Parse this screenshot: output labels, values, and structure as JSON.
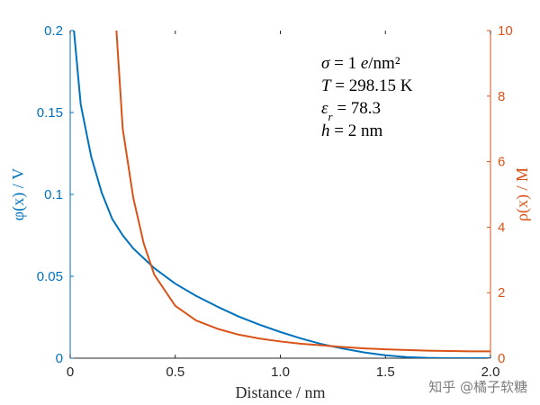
{
  "chart_data": {
    "type": "line",
    "x": [
      0.0,
      0.05,
      0.1,
      0.15,
      0.2,
      0.25,
      0.3,
      0.35,
      0.4,
      0.5,
      0.6,
      0.7,
      0.8,
      0.9,
      1.0,
      1.1,
      1.2,
      1.3,
      1.4,
      1.5,
      1.6,
      1.7,
      1.8,
      1.9,
      2.0
    ],
    "xlabel": "Distance / nm",
    "xlim": [
      0,
      2.0
    ],
    "xticks": [
      "0",
      "0.5",
      "1.0",
      "1.5",
      "2.0"
    ],
    "series": [
      {
        "axis": "left",
        "color": "#0072BD",
        "values": [
          0.225,
          0.155,
          0.123,
          0.101,
          0.085,
          0.075,
          0.067,
          0.061,
          0.055,
          0.0455,
          0.038,
          0.0315,
          0.0255,
          0.0205,
          0.016,
          0.012,
          0.0085,
          0.0058,
          0.0035,
          0.0018,
          0.0007,
          0.0002,
          0.0,
          0.0,
          0.0
        ]
      },
      {
        "axis": "right",
        "color": "#D95319",
        "values": [
          null,
          null,
          null,
          null,
          12.0,
          7.0,
          4.9,
          3.5,
          2.55,
          1.6,
          1.15,
          0.9,
          0.72,
          0.6,
          0.51,
          0.44,
          0.39,
          0.34,
          0.3,
          0.27,
          0.25,
          0.23,
          0.22,
          0.21,
          0.21
        ]
      }
    ],
    "ylabel_left": "φ(x) / V",
    "ylim_left": [
      0,
      0.2
    ],
    "yticks_left": [
      "0",
      "0.05",
      "0.1",
      "0.15",
      "0.2"
    ],
    "ylabel_right": "ρ(x) / M",
    "ylim_right": [
      0,
      10
    ],
    "yticks_right": [
      "0",
      "2",
      "4",
      "6",
      "8",
      "10"
    ],
    "annotations": [
      {
        "id": "sigma",
        "parts": [
          {
            "t": "σ",
            "i": true
          },
          {
            "t": " = 1 "
          },
          {
            "t": "e",
            "i": true
          },
          {
            "t": "/nm²"
          }
        ]
      },
      {
        "id": "temp",
        "parts": [
          {
            "t": "T",
            "i": true
          },
          {
            "t": " = 298.15 K"
          }
        ]
      },
      {
        "id": "eps",
        "parts": [
          {
            "t": "ε",
            "i": true
          },
          {
            "t": "r",
            "i": true,
            "sub": true
          },
          {
            "t": " = 78.3"
          }
        ]
      },
      {
        "id": "h",
        "parts": [
          {
            "t": "h",
            "i": true
          },
          {
            "t": " = 2 nm"
          }
        ]
      }
    ],
    "grid": false,
    "colors": {
      "left_axis": "#0072BD",
      "right_axis": "#D95319",
      "bottom_axis": "#262626"
    }
  },
  "watermark": "知乎 @橘子软糖"
}
